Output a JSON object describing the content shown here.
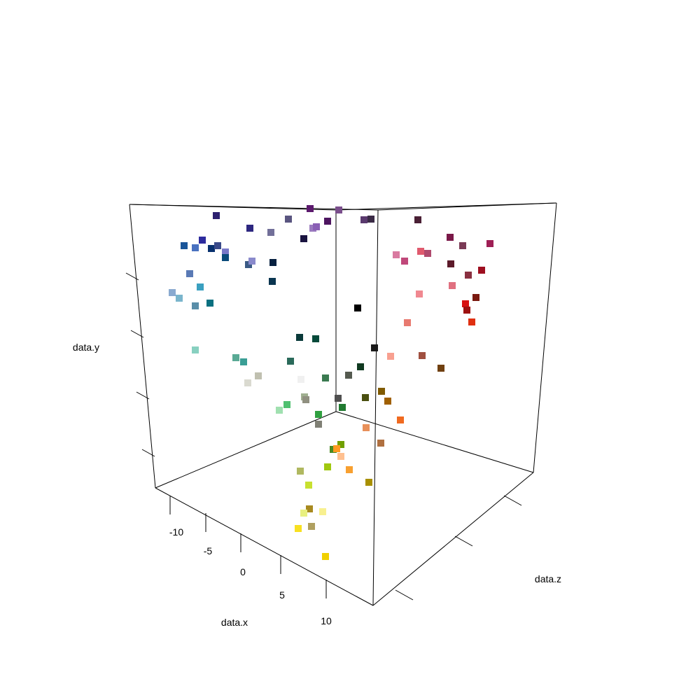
{
  "chart_data": {
    "type": "scatter",
    "title": "",
    "xlabel": "data.x",
    "ylabel": "data.y",
    "zlabel": "data.z",
    "x_ticks": [
      "-10",
      "-5",
      "0",
      "5",
      "10"
    ],
    "marker": "filled-square",
    "points": [
      {
        "color": "#2d2170"
      },
      {
        "color": "#5c1a6e"
      },
      {
        "color": "#7a4e8c"
      },
      {
        "color": "#2d2780"
      },
      {
        "color": "#5a5580"
      },
      {
        "color": "#9b7bbf"
      },
      {
        "color": "#8a5fb5"
      },
      {
        "color": "#4d1560"
      },
      {
        "color": "#5a3a6e"
      },
      {
        "color": "#3a2a45"
      },
      {
        "color": "#1a1440"
      },
      {
        "color": "#726f99"
      },
      {
        "color": "#4a2035"
      },
      {
        "color": "#7a1848"
      },
      {
        "color": "#7a3a55"
      },
      {
        "color": "#9e1f55"
      },
      {
        "color": "#1a5599"
      },
      {
        "color": "#4a72c0"
      },
      {
        "color": "#2d2b9e"
      },
      {
        "color": "#08306e"
      },
      {
        "color": "#3a4a8a"
      },
      {
        "color": "#7878c8"
      },
      {
        "color": "#0a4a7a"
      },
      {
        "color": "#3a5a85"
      },
      {
        "color": "#8a8acc"
      },
      {
        "color": "#072040"
      },
      {
        "color": "#d97aa0"
      },
      {
        "color": "#c0487a"
      },
      {
        "color": "#e05a6e"
      },
      {
        "color": "#b04a6e"
      },
      {
        "color": "#5c1a2a"
      },
      {
        "color": "#9e0f20"
      },
      {
        "color": "#5a7ab5"
      },
      {
        "color": "#0a3550"
      },
      {
        "color": "#3aa0c0"
      },
      {
        "color": "#8aaad0"
      },
      {
        "color": "#7ab5cc"
      },
      {
        "color": "#5a8ea8"
      },
      {
        "color": "#0a7080"
      },
      {
        "color": "#8a3040"
      },
      {
        "color": "#e07080"
      },
      {
        "color": "#f08890"
      },
      {
        "color": "#d81010"
      },
      {
        "color": "#7a1a10"
      },
      {
        "color": "#9e1010"
      },
      {
        "color": "#e03010"
      },
      {
        "color": "#e87a70"
      },
      {
        "color": "#000000"
      },
      {
        "color": "#0a3a3a"
      },
      {
        "color": "#064a3a"
      },
      {
        "color": "#1a1a1a"
      },
      {
        "color": "#f8a090"
      },
      {
        "color": "#a05040"
      },
      {
        "color": "#704010"
      },
      {
        "color": "#88d0c0"
      },
      {
        "color": "#5aaa95"
      },
      {
        "color": "#3a9e95"
      },
      {
        "color": "#2a6a5a"
      },
      {
        "color": "#103a20"
      },
      {
        "color": "#c0c0b0"
      },
      {
        "color": "#dadad0"
      },
      {
        "color": "#f0f0f0"
      },
      {
        "color": "#3a7a50"
      },
      {
        "color": "#555a50"
      },
      {
        "color": "#805a00"
      },
      {
        "color": "#a06000"
      },
      {
        "color": "#4a5010"
      },
      {
        "color": "#50c070"
      },
      {
        "color": "#a0e0b0"
      },
      {
        "color": "#a0b090"
      },
      {
        "color": "#909080"
      },
      {
        "color": "#505050"
      },
      {
        "color": "#207a30"
      },
      {
        "color": "#f06a20"
      },
      {
        "color": "#30a040"
      },
      {
        "color": "#808075"
      },
      {
        "color": "#e8905a"
      },
      {
        "color": "#b07040"
      },
      {
        "color": "#70a000"
      },
      {
        "color": "#4a8a20"
      },
      {
        "color": "#ff9a20"
      },
      {
        "color": "#ffc090"
      },
      {
        "color": "#a0c810"
      },
      {
        "color": "#f8a030"
      },
      {
        "color": "#b0b860"
      },
      {
        "color": "#a89000"
      },
      {
        "color": "#c8e030"
      },
      {
        "color": "#a88a20"
      },
      {
        "color": "#f8f090"
      },
      {
        "color": "#e8f080"
      },
      {
        "color": "#b0a060"
      },
      {
        "color": "#f8e020"
      },
      {
        "color": "#f0d000"
      }
    ]
  }
}
